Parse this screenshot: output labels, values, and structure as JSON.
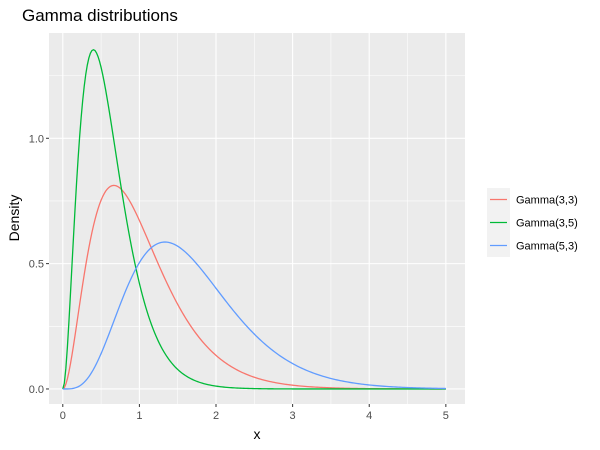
{
  "chart_data": {
    "type": "line",
    "title": "Gamma distributions",
    "xlabel": "x",
    "ylabel": "Density",
    "xlim": [
      -0.18,
      5.25
    ],
    "ylim": [
      -0.06,
      1.42
    ],
    "x_ticks": [
      0,
      1,
      2,
      3,
      4,
      5
    ],
    "x_tick_labels": [
      "0",
      "1",
      "2",
      "3",
      "4",
      "5"
    ],
    "y_ticks": [
      0.0,
      0.5,
      1.0
    ],
    "y_tick_labels": [
      "0.0",
      "0.5",
      "1.0"
    ],
    "x_minor_ticks": [
      0.5,
      1.5,
      2.5,
      3.5,
      4.5
    ],
    "y_minor_ticks": [
      0.25,
      0.75,
      1.25
    ],
    "grid": true,
    "legend_position": "right",
    "series": [
      {
        "name": "Gamma(3,3)",
        "color": "#F8766D",
        "shape": 3,
        "rate": 3,
        "x_range": [
          0,
          5
        ]
      },
      {
        "name": "Gamma(3,5)",
        "color": "#00BA38",
        "shape": 3,
        "rate": 5,
        "x_range": [
          0,
          5
        ]
      },
      {
        "name": "Gamma(5,3)",
        "color": "#619CFF",
        "shape": 5,
        "rate": 3,
        "x_range": [
          0,
          5
        ]
      }
    ]
  }
}
